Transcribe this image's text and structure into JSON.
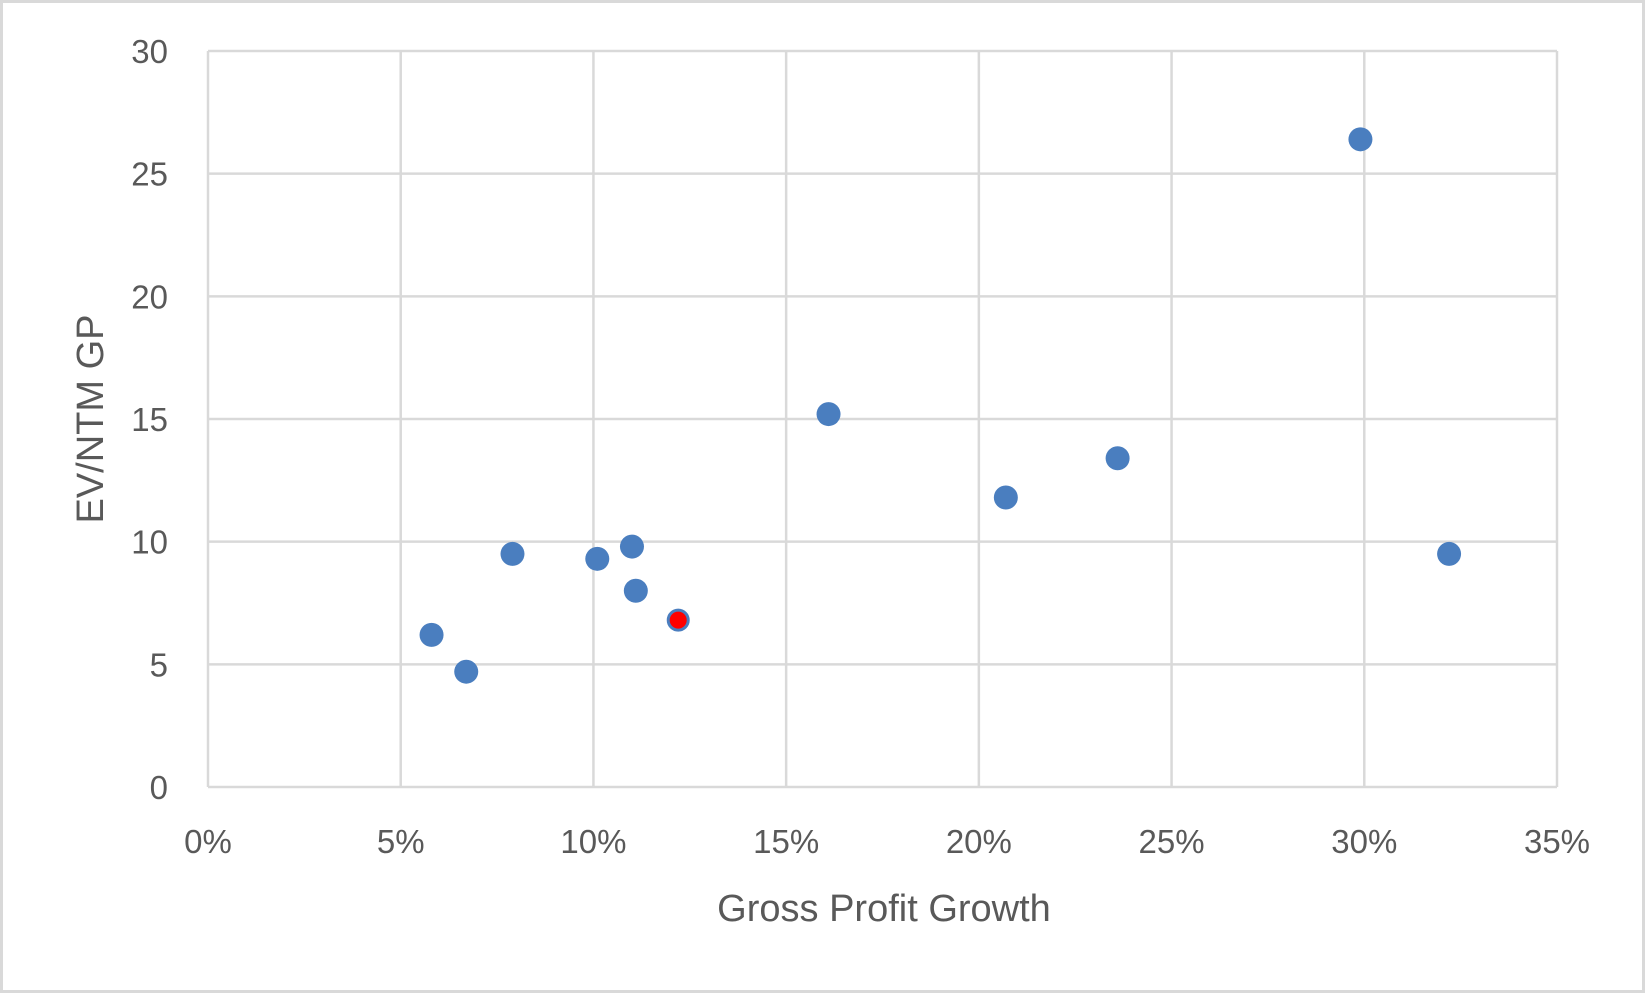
{
  "chart_data": {
    "type": "scatter",
    "title": "",
    "xlabel": "Gross Profit Growth",
    "ylabel": "EV/NTM GP",
    "xlim": [
      0,
      0.35
    ],
    "ylim": [
      0,
      30
    ],
    "x_ticks": [
      0,
      0.05,
      0.1,
      0.15,
      0.2,
      0.25,
      0.3,
      0.35
    ],
    "x_tick_labels": [
      "0%",
      "5%",
      "10%",
      "15%",
      "20%",
      "25%",
      "30%",
      "35%"
    ],
    "y_ticks": [
      0,
      5,
      10,
      15,
      20,
      25,
      30
    ],
    "y_tick_labels": [
      "0",
      "5",
      "10",
      "15",
      "20",
      "25",
      "30"
    ],
    "grid": true,
    "legend": "none",
    "series": [
      {
        "color": "#4a7ebf",
        "points": [
          {
            "x": 0.058,
            "y": 6.2
          },
          {
            "x": 0.067,
            "y": 4.7
          },
          {
            "x": 0.079,
            "y": 9.5
          },
          {
            "x": 0.101,
            "y": 9.3
          },
          {
            "x": 0.11,
            "y": 9.8
          },
          {
            "x": 0.111,
            "y": 8.0
          },
          {
            "x": 0.161,
            "y": 15.2
          },
          {
            "x": 0.207,
            "y": 11.8
          },
          {
            "x": 0.236,
            "y": 13.4
          },
          {
            "x": 0.299,
            "y": 26.4
          },
          {
            "x": 0.322,
            "y": 9.5
          }
        ]
      },
      {
        "color": "#ff0000",
        "outline": "#4a7ebf",
        "points": [
          {
            "x": 0.122,
            "y": 6.8
          }
        ]
      }
    ]
  }
}
